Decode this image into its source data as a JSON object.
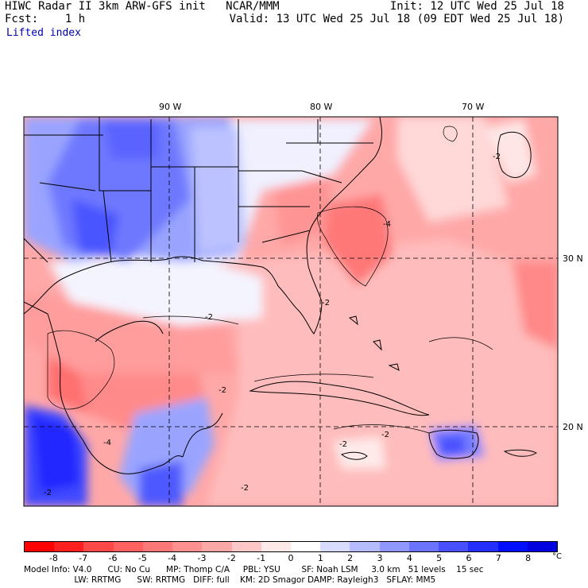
{
  "header": {
    "left_line1": "HIWC Radar II 3km ARW-GFS init   NCAR/MMM",
    "left_line2": "Fcst:    1 h",
    "right_line1": "Init: 12 UTC Wed 25 Jul 18",
    "right_line2": "Valid: 13 UTC Wed 25 Jul 18 (09 EDT Wed 25 Jul 18)",
    "field": "Lifted index"
  },
  "longitude_labels": [
    "90 W",
    "80 W",
    "70 W"
  ],
  "latitude_labels": [
    "30 N",
    "20 N"
  ],
  "contour_labels": [
    "-2",
    "-4",
    "-2",
    "-2",
    "-2",
    "-2",
    "-2",
    "-4",
    "-2",
    "-2"
  ],
  "colorbar": {
    "ticks": [
      "-8",
      "-7",
      "-6",
      "-5",
      "-4",
      "-3",
      "-2",
      "-1",
      "0",
      "1",
      "2",
      "3",
      "4",
      "5",
      "6",
      "7",
      "8"
    ],
    "unit": "°C",
    "colors": [
      "#ff0000",
      "#ff2020",
      "#ff4848",
      "#ff6060",
      "#ff7878",
      "#ff9090",
      "#ffa8a8",
      "#ffc8c8",
      "#ffe8e8",
      "#ffffff",
      "#d8dcff",
      "#b4bcff",
      "#9098ff",
      "#6c74ff",
      "#4850ff",
      "#2430ff",
      "#0010ff",
      "#0000e0"
    ]
  },
  "footer": {
    "line1": "Model Info: V4.0      CU: No Cu      MP: Thomp C/A     PBL: YSU        SF: Noah LSM     3.0 km   51 levels    15 sec",
    "line2": "                   LW: RRTMG      SW: RRTMG   DIFF: full    KM: 2D Smagor DAMP: Rayleigh3   SFLAY: MM5"
  }
}
